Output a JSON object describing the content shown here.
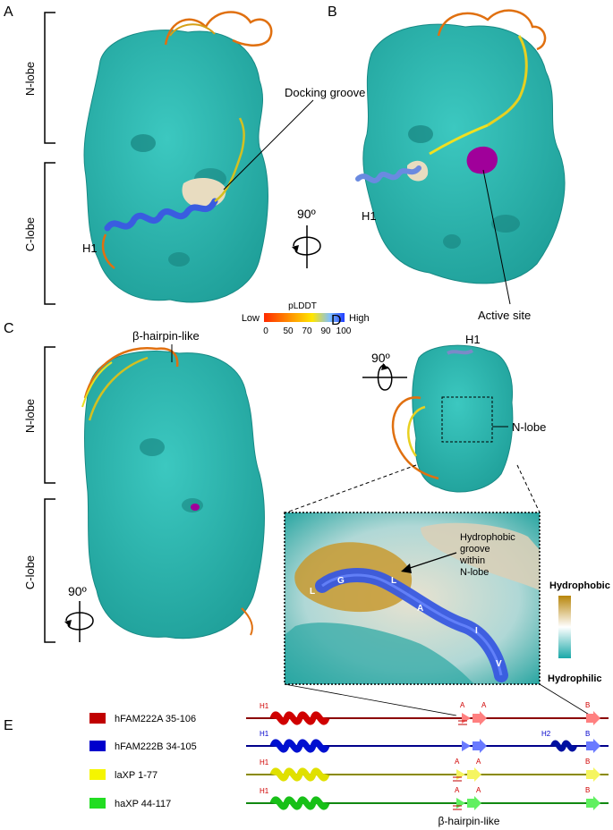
{
  "panels": {
    "a": {
      "letter": "A",
      "n_lobe": "N-lobe",
      "c_lobe": "C-lobe",
      "h1": "H1",
      "docking": "Docking groove"
    },
    "b": {
      "letter": "B",
      "h1": "H1",
      "active": "Active site",
      "rotation": "90º"
    },
    "legend": {
      "title": "pLDDT",
      "low": "Low",
      "high": "High",
      "ticks": [
        "0",
        "50",
        "70",
        "90",
        "100"
      ],
      "colors": [
        "#ff2a00",
        "#ff9a00",
        "#ffe600",
        "#7fbfff",
        "#1e3cff"
      ]
    },
    "c": {
      "letter": "C",
      "hairpin": "β-hairpin-like",
      "n_lobe": "N-lobe",
      "c_lobe": "C-lobe",
      "rotation": "90º"
    },
    "d": {
      "letter": "D",
      "h1": "H1",
      "n_lobe": "N-lobe",
      "rotation": "90º",
      "groove_l1": "Hydrophobic",
      "groove_l2": "groove",
      "groove_l3": "within",
      "groove_l4": "N-lobe",
      "residues": [
        "L",
        "G",
        "L",
        "A",
        "I",
        "V"
      ],
      "scale_top": "Hydrophobic",
      "scale_bottom": "Hydrophilic"
    },
    "e": {
      "letter": "E",
      "hairpin_caption": "β-hairpin-like",
      "rows": [
        {
          "name": "hFAM222A 35-106",
          "color": "#c00000",
          "line": "#8b0000",
          "h1": "H1",
          "a1": "A",
          "a2": "A",
          "b": "B"
        },
        {
          "name": "hFAM222B 34-105",
          "color": "#0000cc",
          "line": "#00008b",
          "h1": "H1",
          "h2": "H2",
          "b": "B"
        },
        {
          "name": "laXP 1-77",
          "color": "#f5f500",
          "line": "#8a8a00",
          "h1": "H1",
          "a1": "A",
          "a2": "A",
          "b": "B"
        },
        {
          "name": "haXP 44-117",
          "color": "#22dd22",
          "line": "#118811",
          "h1": "H1",
          "a1": "A",
          "a2": "A",
          "b": "B"
        }
      ]
    }
  }
}
